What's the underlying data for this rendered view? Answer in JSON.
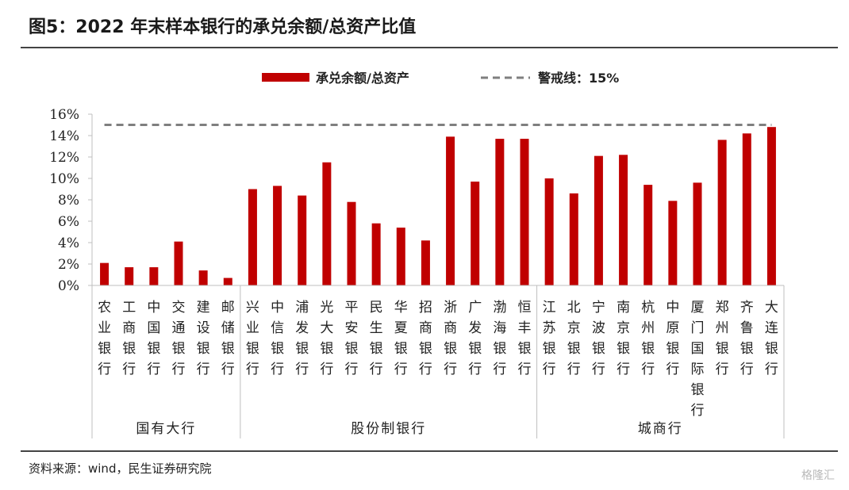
{
  "figure": {
    "title": "图5：2022 年末样本银行的承兑余额/总资产比值",
    "source": "资料来源：wind，民生证券研究院",
    "watermark": "格隆汇"
  },
  "chart_data": {
    "type": "bar",
    "title": "",
    "xlabel": "",
    "ylabel": "",
    "ylim": [
      0,
      0.16
    ],
    "yticks": [
      "0%",
      "2%",
      "4%",
      "6%",
      "8%",
      "10%",
      "12%",
      "14%",
      "16%"
    ],
    "grid": false,
    "legend_position": "top-center",
    "bar_color": "#c00000",
    "threshold_color": "#7f7f7f",
    "categories": [
      "农业银行",
      "工商银行",
      "中国银行",
      "交通银行",
      "建设银行",
      "邮储银行",
      "兴业银行",
      "中信银行",
      "浦发银行",
      "光大银行",
      "平安银行",
      "民生银行",
      "华夏银行",
      "招商银行",
      "浙商银行",
      "广发银行",
      "渤海银行",
      "恒丰银行",
      "江苏银行",
      "北京银行",
      "宁波银行",
      "南京银行",
      "杭州银行",
      "中原银行",
      "厦门国际银行",
      "郑州银行",
      "齐鲁银行",
      "大连银行"
    ],
    "groups": [
      {
        "label": "国有大行",
        "start": 0,
        "end": 5
      },
      {
        "label": "股份制银行",
        "start": 6,
        "end": 17
      },
      {
        "label": "城商行",
        "start": 18,
        "end": 27
      }
    ],
    "series": [
      {
        "name": "承兑余额/总资产",
        "values": [
          0.021,
          0.017,
          0.017,
          0.041,
          0.014,
          0.007,
          0.09,
          0.093,
          0.084,
          0.115,
          0.078,
          0.058,
          0.054,
          0.042,
          0.139,
          0.097,
          0.137,
          0.137,
          0.1,
          0.086,
          0.121,
          0.122,
          0.094,
          0.079,
          0.096,
          0.136,
          0.142,
          0.148
        ]
      }
    ],
    "threshold": {
      "name": "警戒线：15%",
      "value": 0.15
    }
  }
}
